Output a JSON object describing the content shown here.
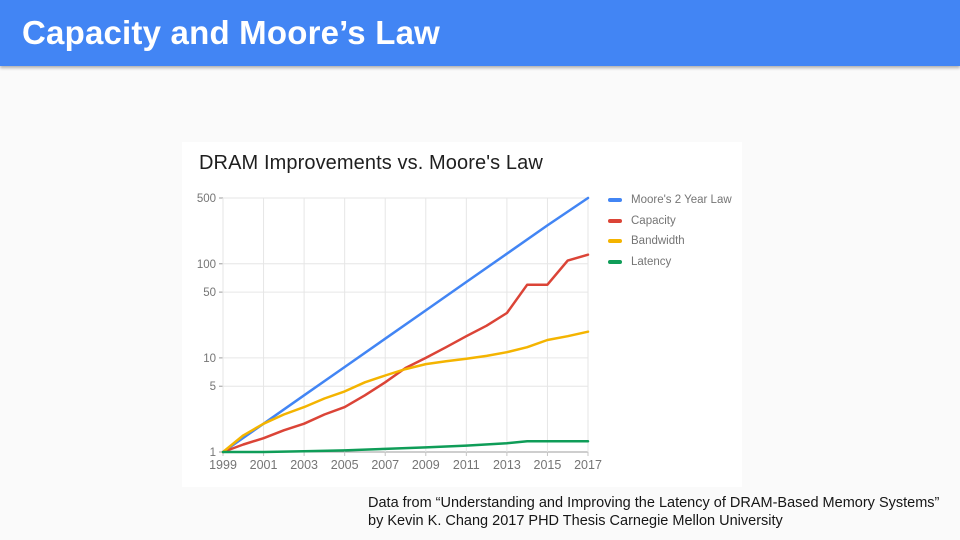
{
  "header": {
    "title": "Capacity and Moore’s Law"
  },
  "caption": {
    "line1": "Data from “Understanding and Improving the Latency of DRAM-Based Memory Systems”",
    "line2": "by Kevin K. Chang 2017 PHD Thesis Carnegie Mellon University"
  },
  "colors": {
    "header_bg": "#4285F4",
    "page_bg": "#fafafa",
    "card_bg": "#ffffff",
    "grid": "#e6e6e6",
    "axis": "#9e9e9e",
    "tick_label": "#757575",
    "legend_text": "#757575"
  },
  "chart_data": {
    "type": "line",
    "title": "DRAM Improvements vs. Moore's Law",
    "xlabel": "",
    "ylabel": "",
    "x_range": [
      1999,
      2017
    ],
    "y_range": [
      1,
      500
    ],
    "y_scale": "log",
    "grid": true,
    "legend_position": "right",
    "x_ticks": [
      1999,
      2001,
      2003,
      2005,
      2007,
      2009,
      2011,
      2013,
      2015,
      2017
    ],
    "y_ticks": [
      1,
      5,
      10,
      50,
      100,
      500
    ],
    "series": [
      {
        "name": "Moore's 2 Year Law",
        "color": "#4285F4",
        "x": [
          1999,
          2001,
          2003,
          2005,
          2007,
          2009,
          2011,
          2013,
          2015,
          2017
        ],
        "y": [
          1,
          2,
          4,
          8,
          16,
          32,
          64,
          128,
          256,
          500
        ]
      },
      {
        "name": "Capacity",
        "color": "#DB4437",
        "x": [
          1999,
          2000,
          2001,
          2002,
          2003,
          2004,
          2005,
          2006,
          2007,
          2008,
          2009,
          2010,
          2011,
          2012,
          2013,
          2014,
          2015,
          2016,
          2017
        ],
        "y": [
          1,
          1.2,
          1.4,
          1.7,
          2,
          2.5,
          3,
          4,
          5.5,
          7.8,
          10,
          13,
          17,
          22,
          30,
          60,
          60,
          108,
          125
        ]
      },
      {
        "name": "Bandwidth",
        "color": "#F4B400",
        "x": [
          1999,
          2000,
          2001,
          2002,
          2003,
          2004,
          2005,
          2006,
          2007,
          2008,
          2009,
          2010,
          2011,
          2012,
          2013,
          2014,
          2015,
          2016,
          2017
        ],
        "y": [
          1,
          1.5,
          2,
          2.5,
          3,
          3.7,
          4.4,
          5.5,
          6.5,
          7.6,
          8.6,
          9.2,
          9.8,
          10.5,
          11.5,
          13,
          15.5,
          17,
          19
        ]
      },
      {
        "name": "Latency",
        "color": "#0F9D58",
        "x": [
          1999,
          2001,
          2003,
          2005,
          2007,
          2009,
          2011,
          2013,
          2014,
          2015,
          2016,
          2017
        ],
        "y": [
          1,
          1,
          1.02,
          1.04,
          1.08,
          1.12,
          1.17,
          1.24,
          1.3,
          1.3,
          1.3,
          1.3
        ]
      }
    ]
  }
}
